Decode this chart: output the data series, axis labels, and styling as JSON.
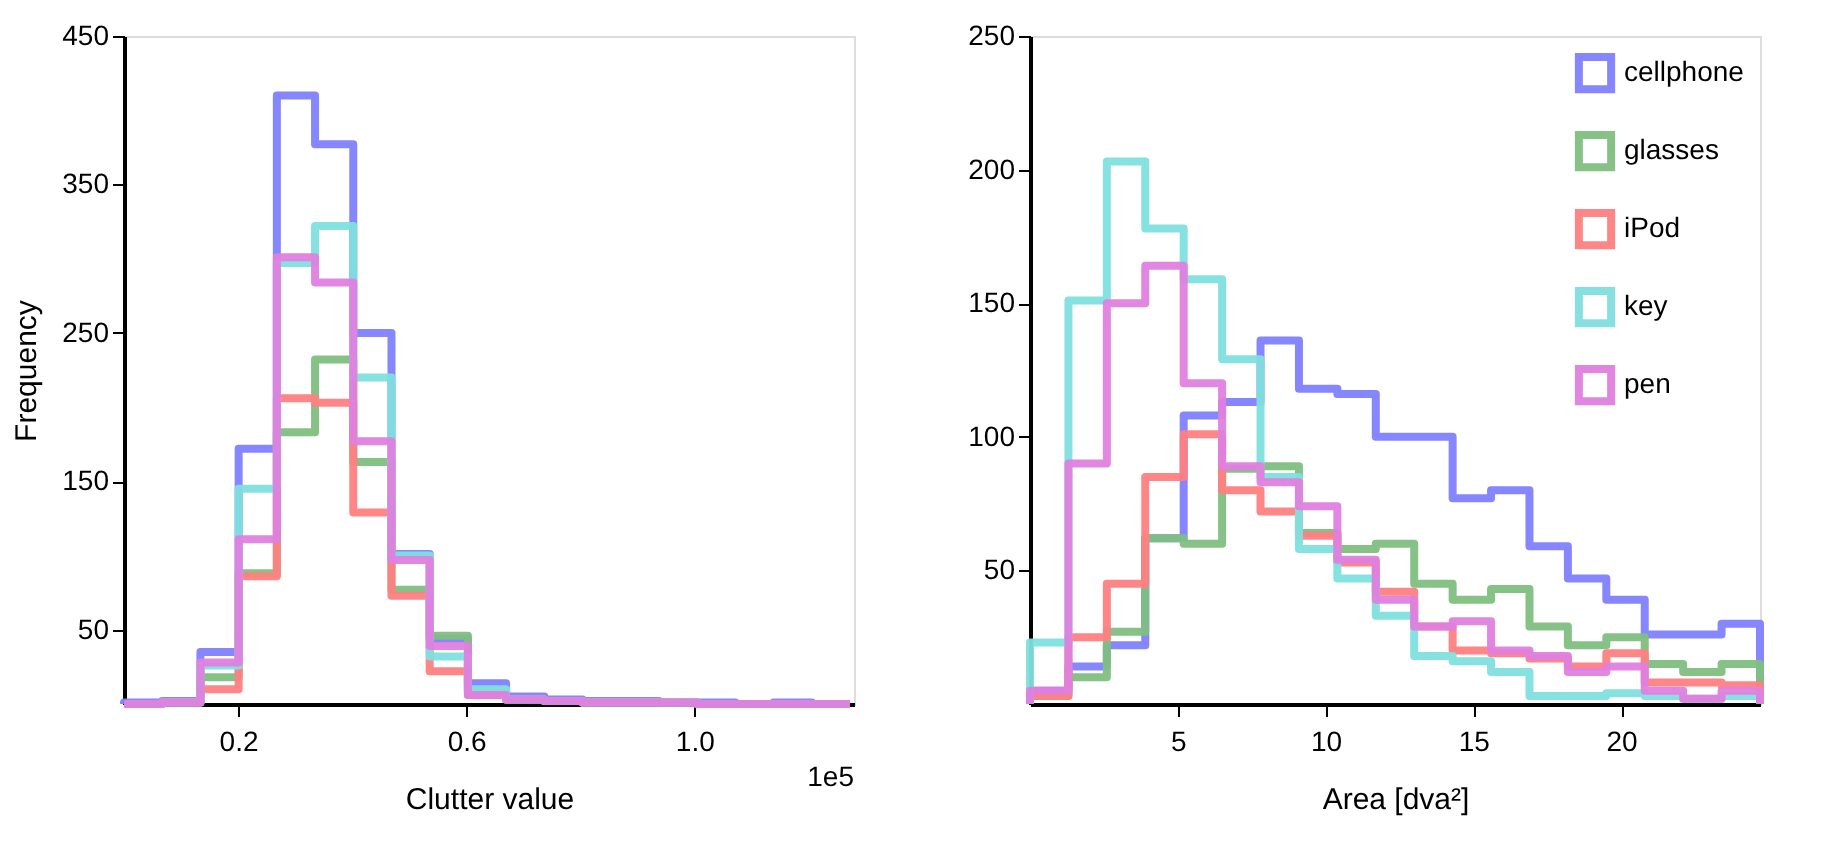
{
  "chart_data": [
    {
      "type": "histogram",
      "xlabel": "Clutter value",
      "ylabel": "Frequency",
      "annotations": [
        "1e5"
      ],
      "bins": [
        0,
        0.067,
        0.134,
        0.201,
        0.268,
        0.335,
        0.402,
        0.469,
        0.536,
        0.603,
        0.67,
        0.737,
        0.804,
        0.871,
        0.938,
        1.005,
        1.072,
        1.139,
        1.206,
        1.273
      ],
      "xlim": [
        0,
        1.28
      ],
      "xticks": [
        0.2,
        0.6,
        {
          "value": 1.0,
          "label": "1.0"
        }
      ],
      "ylim": [
        0,
        450
      ],
      "yticks": [
        50,
        150,
        250,
        350,
        450
      ],
      "grid": false,
      "legend": false,
      "series": [
        {
          "color": "#8080ff",
          "values": [
            1,
            2,
            35,
            172,
            410,
            377,
            250,
            101,
            44,
            14,
            5,
            3,
            2,
            2,
            1,
            1,
            0,
            1,
            0
          ]
        },
        {
          "color": "#80bf80",
          "values": [
            0,
            1,
            18,
            88,
            183,
            232,
            163,
            77,
            46,
            9,
            3,
            2,
            1,
            1,
            1,
            0,
            0,
            0,
            0
          ]
        },
        {
          "color": "#ff8080",
          "values": [
            0,
            1,
            10,
            86,
            206,
            203,
            129,
            73,
            22,
            6,
            3,
            2,
            1,
            1,
            1,
            0,
            0,
            0,
            0
          ]
        },
        {
          "color": "#80dfdf",
          "values": [
            0,
            1,
            26,
            145,
            297,
            322,
            220,
            100,
            32,
            10,
            3,
            2,
            1,
            1,
            1,
            0,
            0,
            0,
            0
          ]
        },
        {
          "color": "#df80df",
          "values": [
            0,
            1,
            28,
            111,
            301,
            284,
            177,
            97,
            39,
            6,
            3,
            2,
            1,
            1,
            1,
            0,
            0,
            0,
            0
          ]
        }
      ]
    },
    {
      "type": "histogram",
      "xlabel": "Area [dva²]",
      "bins": [
        0,
        1.3,
        2.6,
        3.9,
        5.2,
        6.5,
        7.8,
        9.1,
        10.4,
        11.7,
        13.0,
        14.3,
        15.6,
        16.9,
        18.2,
        19.5,
        20.8,
        22.1,
        23.4,
        24.7
      ],
      "xlim": [
        0,
        24.7
      ],
      "xticks": [
        5,
        10,
        15,
        20
      ],
      "ylim": [
        0,
        250
      ],
      "yticks": [
        50,
        100,
        150,
        200,
        250
      ],
      "grid": false,
      "legend": "top right",
      "series": [
        {
          "name": "cellphone",
          "color": "#8080ff",
          "values": [
            5,
            14,
            22,
            62,
            108,
            113,
            136,
            118,
            116,
            100,
            100,
            77,
            80,
            59,
            47,
            39,
            26,
            26,
            30
          ]
        },
        {
          "name": "glasses",
          "color": "#80bf80",
          "values": [
            3,
            10,
            27,
            62,
            60,
            88,
            89,
            64,
            58,
            60,
            45,
            39,
            43,
            29,
            22,
            25,
            15,
            12,
            15
          ]
        },
        {
          "name": "iPod",
          "color": "#ff8080",
          "values": [
            3,
            25,
            45,
            85,
            101,
            80,
            72,
            63,
            53,
            42,
            29,
            20,
            19,
            17,
            14,
            19,
            8,
            8,
            7
          ]
        },
        {
          "name": "key",
          "color": "#80dfdf",
          "values": [
            23,
            151,
            203,
            178,
            159,
            129,
            85,
            58,
            47,
            33,
            18,
            16,
            12,
            3,
            3,
            4,
            3,
            2,
            3
          ]
        },
        {
          "name": "pen",
          "color": "#df80df",
          "values": [
            5,
            90,
            150,
            164,
            120,
            89,
            83,
            74,
            54,
            39,
            29,
            31,
            20,
            18,
            12,
            14,
            5,
            2,
            5
          ]
        }
      ]
    }
  ]
}
